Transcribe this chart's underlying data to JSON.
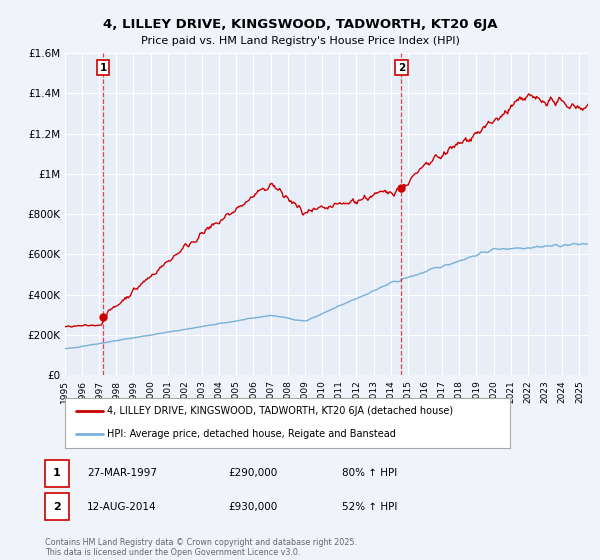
{
  "title": "4, LILLEY DRIVE, KINGSWOOD, TADWORTH, KT20 6JA",
  "subtitle": "Price paid vs. HM Land Registry's House Price Index (HPI)",
  "bg_color": "#f0f4fa",
  "plot_bg_color": "#e8eef8",
  "grid_color": "#ffffff",
  "red_line_color": "#cc0000",
  "blue_line_color": "#7ab0d8",
  "marker1_date": 1997.23,
  "marker1_value": 290000,
  "marker2_date": 2014.62,
  "marker2_value": 930000,
  "annotation1_label": "1",
  "annotation2_label": "2",
  "legend_red": "4, LILLEY DRIVE, KINGSWOOD, TADWORTH, KT20 6JA (detached house)",
  "legend_blue": "HPI: Average price, detached house, Reigate and Banstead",
  "table_row1": [
    "1",
    "27-MAR-1997",
    "£290,000",
    "80% ↑ HPI"
  ],
  "table_row2": [
    "2",
    "12-AUG-2014",
    "£930,000",
    "52% ↑ HPI"
  ],
  "footer": "Contains HM Land Registry data © Crown copyright and database right 2025.\nThis data is licensed under the Open Government Licence v3.0.",
  "ylim": [
    0,
    1600000
  ],
  "xlim": [
    1995.0,
    2025.5
  ],
  "ytick_values": [
    0,
    200000,
    400000,
    600000,
    800000,
    1000000,
    1200000,
    1400000,
    1600000
  ],
  "ytick_labels": [
    "£0",
    "£200K",
    "£400K",
    "£600K",
    "£800K",
    "£1M",
    "£1.2M",
    "£1.4M",
    "£1.6M"
  ]
}
